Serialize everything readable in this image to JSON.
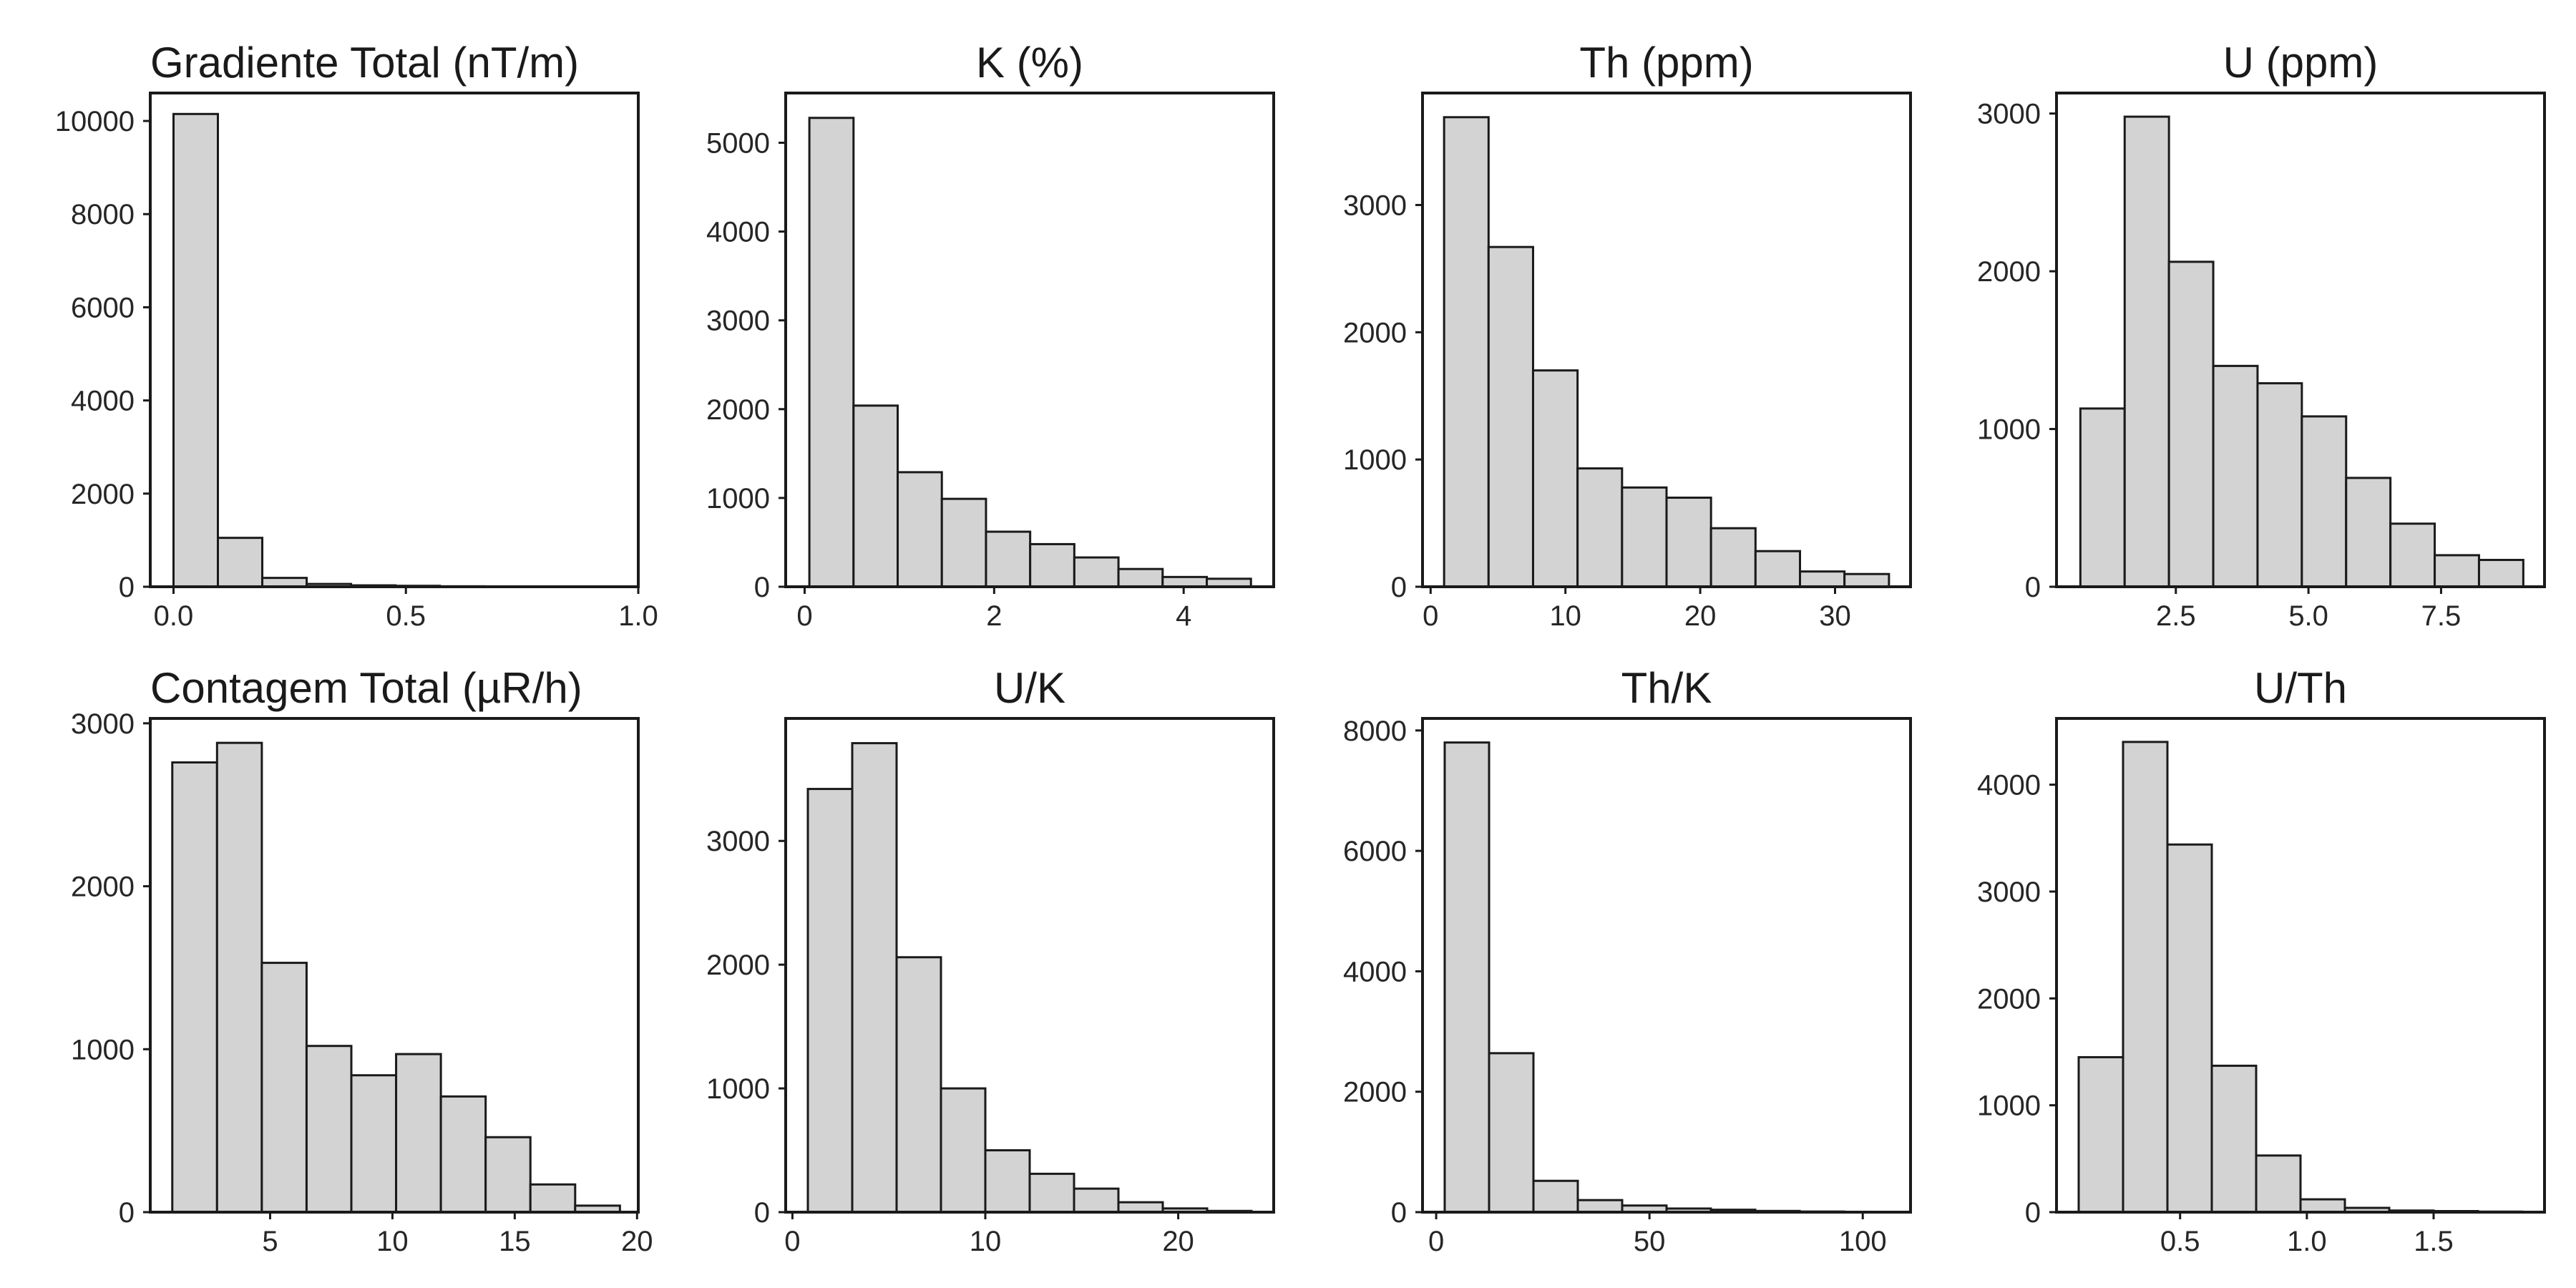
{
  "colors": {
    "bar_fill": "#d3d3d3",
    "bar_edge": "#1a1a1a",
    "frame": "#1a1a1a",
    "text": "#262626",
    "background": "#ffffff"
  },
  "chart_data": [
    {
      "type": "bar",
      "title": "Gradiente Total (nT/m)",
      "bin_edges": [
        0.0,
        0.0955,
        0.191,
        0.2865,
        0.382,
        0.4775,
        0.573,
        0.6685,
        0.764,
        0.8595,
        0.955
      ],
      "values": [
        10150,
        1050,
        190,
        60,
        30,
        20,
        10,
        5,
        3,
        2
      ],
      "xlim": [
        -0.05,
        1.0
      ],
      "ylim": [
        0,
        10600
      ],
      "xticks": [
        0.0,
        0.5,
        1.0
      ],
      "xtick_labels": [
        "0.0",
        "0.5",
        "1.0"
      ],
      "yticks": [
        0,
        2000,
        4000,
        6000,
        8000,
        10000
      ],
      "ytick_labels": [
        "0",
        "2000",
        "4000",
        "6000",
        "8000",
        "10000"
      ],
      "grid": false
    },
    {
      "type": "bar",
      "title": "K (%)",
      "bin_edges": [
        0.05,
        0.516,
        0.982,
        1.448,
        1.914,
        2.38,
        2.846,
        3.312,
        3.778,
        4.244,
        4.71
      ],
      "values": [
        5280,
        2040,
        1290,
        990,
        620,
        480,
        330,
        200,
        110,
        90
      ],
      "xlim": [
        -0.2,
        4.95
      ],
      "ylim": [
        0,
        5560
      ],
      "xticks": [
        0,
        2,
        4
      ],
      "xtick_labels": [
        "0",
        "2",
        "4"
      ],
      "yticks": [
        0,
        1000,
        2000,
        3000,
        4000,
        5000
      ],
      "ytick_labels": [
        "0",
        "1000",
        "2000",
        "3000",
        "4000",
        "5000"
      ],
      "grid": false
    },
    {
      "type": "bar",
      "title": "Th (ppm)",
      "bin_edges": [
        1.0,
        4.3,
        7.6,
        10.9,
        14.2,
        17.5,
        20.8,
        24.1,
        27.4,
        30.7,
        34.0
      ],
      "values": [
        3690,
        2670,
        1700,
        930,
        780,
        700,
        460,
        280,
        120,
        100
      ],
      "xlim": [
        -0.6,
        35.6
      ],
      "ylim": [
        0,
        3880
      ],
      "xticks": [
        0,
        10,
        20,
        30
      ],
      "xtick_labels": [
        "0",
        "10",
        "20",
        "30"
      ],
      "yticks": [
        0,
        1000,
        2000,
        3000
      ],
      "ytick_labels": [
        "0",
        "1000",
        "2000",
        "3000"
      ],
      "grid": false
    },
    {
      "type": "bar",
      "title": "U (ppm)",
      "bin_edges": [
        0.7,
        1.535,
        2.37,
        3.205,
        4.04,
        4.875,
        5.71,
        6.545,
        7.38,
        8.215,
        9.05
      ],
      "values": [
        1130,
        2980,
        2060,
        1400,
        1290,
        1080,
        690,
        400,
        200,
        170
      ],
      "xlim": [
        0.25,
        9.45
      ],
      "ylim": [
        0,
        3130
      ],
      "xticks": [
        2.5,
        5.0,
        7.5
      ],
      "xtick_labels": [
        "2.5",
        "5.0",
        "7.5"
      ],
      "yticks": [
        0,
        1000,
        2000,
        3000
      ],
      "ytick_labels": [
        "0",
        "1000",
        "2000",
        "3000"
      ],
      "grid": false
    },
    {
      "type": "bar",
      "title": "Contagem Total (µR/h)",
      "bin_edges": [
        1.0,
        2.83,
        4.66,
        6.49,
        8.32,
        10.15,
        11.98,
        13.81,
        15.64,
        17.47,
        19.3
      ],
      "values": [
        2760,
        2880,
        1530,
        1020,
        840,
        970,
        710,
        460,
        170,
        40
      ],
      "xlim": [
        0.1,
        20.05
      ],
      "ylim": [
        0,
        3030
      ],
      "xticks": [
        5,
        10,
        15,
        20
      ],
      "xtick_labels": [
        "5",
        "10",
        "15",
        "20"
      ],
      "yticks": [
        0,
        1000,
        2000,
        3000
      ],
      "ytick_labels": [
        "0",
        "1000",
        "2000",
        "3000"
      ],
      "grid": false
    },
    {
      "type": "bar",
      "title": "U/K",
      "bin_edges": [
        0.8,
        3.1,
        5.4,
        7.7,
        10.0,
        12.3,
        14.6,
        16.9,
        19.2,
        21.5,
        23.8
      ],
      "values": [
        3420,
        3790,
        2060,
        1000,
        500,
        310,
        190,
        80,
        30,
        10
      ],
      "xlim": [
        -0.35,
        24.95
      ],
      "ylim": [
        0,
        3990
      ],
      "xticks": [
        0,
        10,
        20
      ],
      "xtick_labels": [
        "0",
        "10",
        "20"
      ],
      "yticks": [
        0,
        1000,
        2000,
        3000
      ],
      "ytick_labels": [
        "0",
        "1000",
        "2000",
        "3000"
      ],
      "grid": false
    },
    {
      "type": "bar",
      "title": "Th/K",
      "bin_edges": [
        2.0,
        12.4,
        22.8,
        33.2,
        43.6,
        54.0,
        64.4,
        74.8,
        85.2,
        95.6,
        106.0
      ],
      "values": [
        7800,
        2640,
        520,
        200,
        110,
        60,
        40,
        20,
        10,
        5
      ],
      "xlim": [
        -3.2,
        111.2
      ],
      "ylim": [
        0,
        8200
      ],
      "xticks": [
        0,
        50,
        100
      ],
      "xtick_labels": [
        "0",
        "50",
        "100"
      ],
      "yticks": [
        0,
        2000,
        4000,
        6000,
        8000
      ],
      "ytick_labels": [
        "0",
        "2000",
        "4000",
        "6000",
        "8000"
      ],
      "grid": false
    },
    {
      "type": "bar",
      "title": "U/Th",
      "bin_edges": [
        0.1,
        0.275,
        0.45,
        0.625,
        0.8,
        0.975,
        1.15,
        1.325,
        1.5,
        1.675,
        1.85
      ],
      "values": [
        1450,
        4400,
        3440,
        1370,
        530,
        120,
        40,
        15,
        10,
        5
      ],
      "xlim": [
        0.0125,
        1.9375
      ],
      "ylim": [
        0,
        4620
      ],
      "xticks": [
        0.5,
        1.0,
        1.5
      ],
      "xtick_labels": [
        "0.5",
        "1.0",
        "1.5"
      ],
      "yticks": [
        0,
        1000,
        2000,
        3000,
        4000
      ],
      "ytick_labels": [
        "0",
        "1000",
        "2000",
        "3000",
        "4000"
      ],
      "grid": false
    }
  ]
}
